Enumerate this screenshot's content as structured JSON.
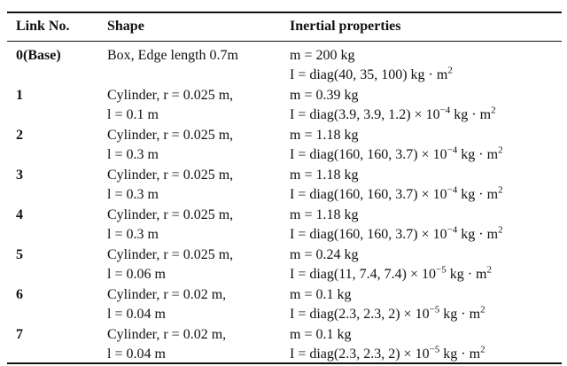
{
  "table": {
    "header": [
      "Link No.",
      "Shape",
      "Inertial properties"
    ],
    "rows": [
      {
        "link": "0(Base)",
        "shape": [
          "Box, Edge length 0.7m"
        ],
        "mass": "m = 200 kg",
        "inertia": [
          "I = diag(40, 35, 100) kg · m",
          {
            "sup": "2"
          }
        ]
      },
      {
        "link": "1",
        "shape": [
          "Cylinder, r = 0.025 m,",
          "l = 0.1 m"
        ],
        "mass": "m = 0.39 kg",
        "inertia": [
          "I = diag(3.9, 3.9, 1.2) × 10",
          {
            "sup": "−4"
          },
          " kg · m",
          {
            "sup": "2"
          }
        ]
      },
      {
        "link": "2",
        "shape": [
          "Cylinder, r = 0.025 m,",
          "l = 0.3 m"
        ],
        "mass": "m = 1.18 kg",
        "inertia": [
          "I = diag(160, 160, 3.7) × 10",
          {
            "sup": "−4"
          },
          " kg · m",
          {
            "sup": "2"
          }
        ]
      },
      {
        "link": "3",
        "shape": [
          "Cylinder, r = 0.025 m,",
          "l = 0.3 m"
        ],
        "mass": "m = 1.18 kg",
        "inertia": [
          "I = diag(160, 160, 3.7) × 10",
          {
            "sup": "−4"
          },
          " kg · m",
          {
            "sup": "2"
          }
        ]
      },
      {
        "link": "4",
        "shape": [
          "Cylinder, r = 0.025 m,",
          "l = 0.3 m"
        ],
        "mass": "m = 1.18 kg",
        "inertia": [
          "I = diag(160, 160, 3.7) × 10",
          {
            "sup": "−4"
          },
          " kg · m",
          {
            "sup": "2"
          }
        ]
      },
      {
        "link": "5",
        "shape": [
          "Cylinder, r = 0.025 m,",
          "l = 0.06 m"
        ],
        "mass": "m = 0.24 kg",
        "inertia": [
          "I = diag(11, 7.4, 7.4) × 10",
          {
            "sup": "−5"
          },
          " kg · m",
          {
            "sup": "2"
          }
        ]
      },
      {
        "link": "6",
        "shape": [
          "Cylinder, r = 0.02 m,",
          "l = 0.04 m"
        ],
        "mass": "m = 0.1 kg",
        "inertia": [
          "I = diag(2.3, 2.3, 2) × 10",
          {
            "sup": "−5"
          },
          " kg · m",
          {
            "sup": "2"
          }
        ]
      },
      {
        "link": "7",
        "shape": [
          "Cylinder, r = 0.02 m,",
          "l = 0.04 m"
        ],
        "mass": "m = 0.1 kg",
        "inertia": [
          "I = diag(2.3, 2.3, 2) × 10",
          {
            "sup": "−5"
          },
          " kg · m",
          {
            "sup": "2"
          }
        ]
      }
    ]
  }
}
